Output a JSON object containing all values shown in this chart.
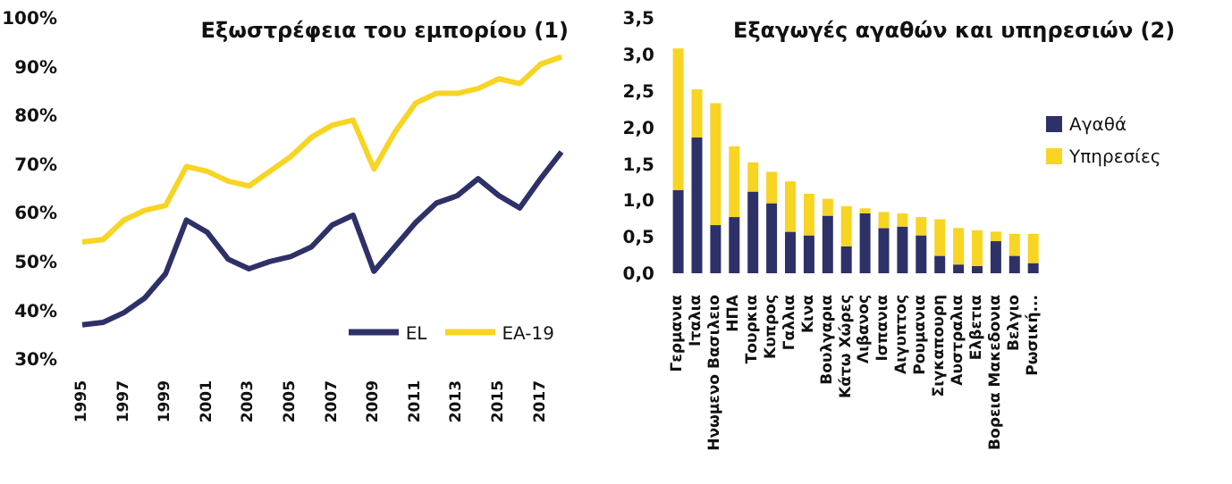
{
  "chart_data": [
    {
      "type": "line",
      "title": "Εξωστρέφεια του εμπορίου  (1)",
      "categories": [
        "1995",
        null,
        "1997",
        null,
        "1999",
        null,
        "2001",
        null,
        "2003",
        null,
        "2005",
        null,
        "2007",
        null,
        "2009",
        null,
        "2011",
        null,
        "2013",
        null,
        "2015",
        null,
        "2017",
        null
      ],
      "series": [
        {
          "name": "EL",
          "color": "#2e3168",
          "values": [
            37,
            37.5,
            39.5,
            42.5,
            47.5,
            58.5,
            56,
            50.5,
            48.5,
            50,
            51,
            53,
            57.5,
            59.5,
            48,
            53,
            58,
            62,
            63.5,
            67,
            63.5,
            61,
            67,
            72.5
          ]
        },
        {
          "name": "EA-19",
          "color": "#f8d423",
          "values": [
            54,
            54.5,
            58.5,
            60.5,
            61.5,
            69.5,
            68.5,
            66.5,
            65.5,
            68.5,
            71.5,
            75.5,
            78,
            79,
            69,
            76.5,
            82.5,
            84.5,
            84.5,
            85.5,
            87.5,
            86.5,
            90.5,
            92
          ]
        }
      ],
      "ylim": [
        30,
        100
      ],
      "yticks": [
        {
          "value": 30,
          "label": "30%"
        },
        {
          "value": 40,
          "label": "40%"
        },
        {
          "value": 50,
          "label": "50%"
        },
        {
          "value": 60,
          "label": "60%"
        },
        {
          "value": 70,
          "label": "70%"
        },
        {
          "value": 80,
          "label": "80%"
        },
        {
          "value": 90,
          "label": "90%"
        },
        {
          "value": 100,
          "label": "100%"
        }
      ],
      "grid": false,
      "legend": "bottom right",
      "marker": "none",
      "line_style": "solid"
    },
    {
      "type": "bar",
      "title": "Εξαγωγές αγαθών και υπηρεσιών  (2)",
      "stacked": true,
      "categories": [
        "Γερμανια",
        "Ιταλια",
        "Ηνωμενο Βασιλειο",
        "ΗΠΑ",
        "Τουρκια",
        "Κυπρος",
        "Γαλλια",
        "Κινα",
        "Βουλγαρια",
        "Κάτω Χώρες",
        "Λιβανος",
        "Ισπανια",
        "Αιγυπτος",
        "Ρουμανια",
        "Σιγκαπουρη",
        "Αυστραλια",
        "Ελβετια",
        "Βορεια Μακεδονια",
        "Βελγιο",
        "Ρωσική..."
      ],
      "series": [
        {
          "name": "Αγαθά",
          "color": "#2e3168",
          "values": [
            1.14,
            1.86,
            0.66,
            0.77,
            1.12,
            0.96,
            0.57,
            0.52,
            0.79,
            0.37,
            0.82,
            0.62,
            0.64,
            0.52,
            0.24,
            0.12,
            0.1,
            0.44,
            0.24,
            0.14
          ]
        },
        {
          "name": "Υπηρεσίες",
          "color": "#f8d423",
          "values": [
            1.94,
            0.66,
            1.67,
            0.97,
            0.4,
            0.43,
            0.69,
            0.57,
            0.23,
            0.55,
            0.07,
            0.22,
            0.18,
            0.25,
            0.5,
            0.5,
            0.49,
            0.13,
            0.3,
            0.4
          ]
        }
      ],
      "ylim": [
        0,
        3.5
      ],
      "yticks": [
        {
          "value": 0,
          "label": "0,0"
        },
        {
          "value": 0.5,
          "label": "0,5"
        },
        {
          "value": 1,
          "label": "1,0"
        },
        {
          "value": 1.5,
          "label": "1,5"
        },
        {
          "value": 2,
          "label": "2,0"
        },
        {
          "value": 2.5,
          "label": "2,5"
        },
        {
          "value": 3,
          "label": "3,0"
        },
        {
          "value": 3.5,
          "label": "3,5"
        }
      ],
      "grid": false,
      "legend": "right"
    }
  ]
}
